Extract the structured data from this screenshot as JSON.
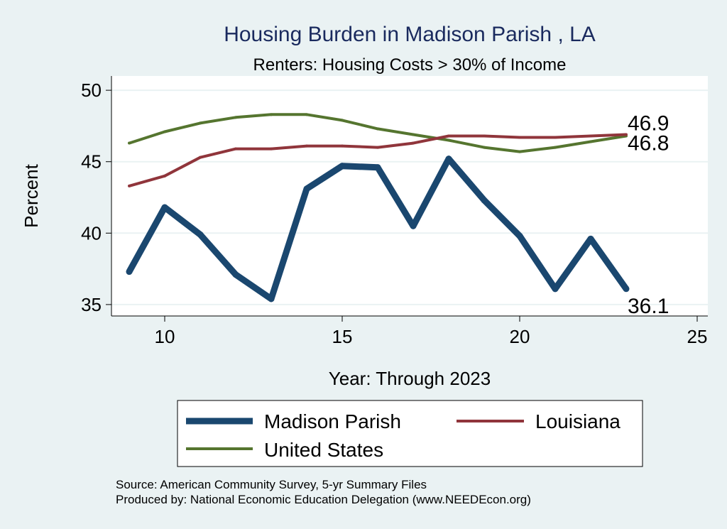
{
  "chart_data": {
    "type": "line",
    "title": "Housing Burden in Madison Parish , LA",
    "subtitle": "Renters: Housing Costs > 30% of Income",
    "xlabel": "Year: Through 2023",
    "ylabel": "Percent",
    "xlim": [
      8.5,
      25.3
    ],
    "ylim": [
      34.2,
      51.0
    ],
    "xticks": [
      10,
      15,
      20,
      25
    ],
    "yticks": [
      35,
      40,
      45,
      50
    ],
    "grid": true,
    "legend_position": "bottom",
    "series": [
      {
        "name": "Madison Parish",
        "color": "#1a476f",
        "x": [
          9,
          10,
          11,
          12,
          13,
          14,
          15,
          16,
          17,
          18,
          19,
          20,
          21,
          22,
          23
        ],
        "values": [
          37.3,
          41.8,
          39.9,
          37.1,
          35.4,
          43.1,
          44.7,
          44.6,
          40.5,
          45.2,
          42.3,
          39.8,
          36.1,
          39.6,
          36.1
        ]
      },
      {
        "name": "Louisiana",
        "color": "#90353b",
        "x": [
          9,
          10,
          11,
          12,
          13,
          14,
          15,
          16,
          17,
          18,
          19,
          20,
          21,
          22,
          23
        ],
        "values": [
          43.3,
          44.0,
          45.3,
          45.9,
          45.9,
          46.1,
          46.1,
          46.0,
          46.3,
          46.8,
          46.8,
          46.7,
          46.7,
          46.8,
          46.9
        ]
      },
      {
        "name": "United States",
        "color": "#55752f",
        "x": [
          9,
          10,
          11,
          12,
          13,
          14,
          15,
          16,
          17,
          18,
          19,
          20,
          21,
          22,
          23
        ],
        "values": [
          46.3,
          47.1,
          47.7,
          48.1,
          48.3,
          48.3,
          47.9,
          47.3,
          46.9,
          46.5,
          46.0,
          45.7,
          46.0,
          46.4,
          46.8
        ]
      }
    ],
    "annotations": [
      {
        "text": "46.9",
        "series": "Louisiana"
      },
      {
        "text": "46.8",
        "series": "United States"
      },
      {
        "text": "36.1",
        "series": "Madison Parish"
      }
    ]
  },
  "source": {
    "line1": "Source: American Community Survey, 5-yr Summary Files",
    "line2": "Produced by: National Economic Education Delegation (www.NEEDEcon.org)"
  }
}
